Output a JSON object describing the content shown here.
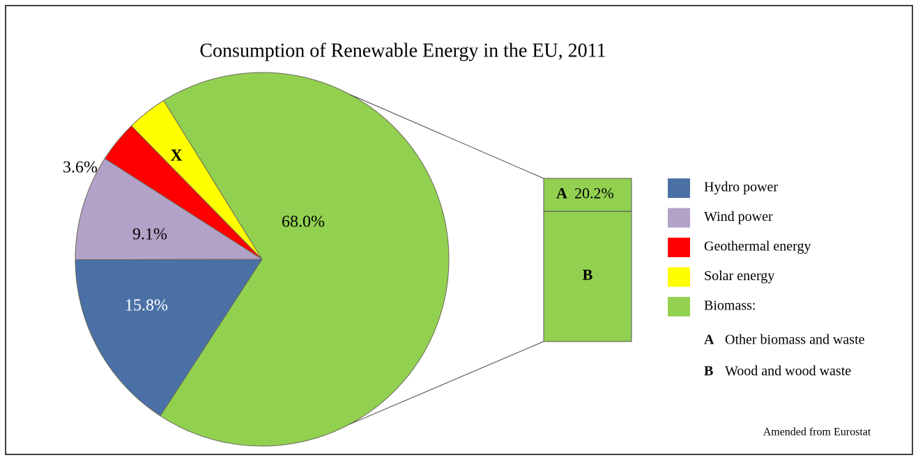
{
  "chart_data": {
    "type": "pie",
    "title": "Consumption of Renewable Energy in the EU, 2011",
    "categories": [
      "Hydro power",
      "Wind power",
      "Geothermal energy",
      "Solar energy",
      "Biomass:"
    ],
    "values": [
      15.8,
      9.1,
      3.6,
      3.5,
      68.0
    ],
    "value_labels": [
      "15.8%",
      "9.1%",
      "3.6%",
      "X",
      "68.0%"
    ],
    "colors": [
      "#4a70a6",
      "#b3a2c7",
      "#ff0000",
      "#ffff00",
      "#92d050"
    ],
    "legend": "right",
    "breakdown": {
      "keys": [
        "A",
        "B"
      ],
      "categories": [
        "Other biomass and waste",
        "Wood and wood waste"
      ],
      "values": [
        20.2,
        79.8
      ],
      "value_labels": [
        "20.2%",
        null
      ],
      "color": "#92d050"
    },
    "source": "Amended from Eurostat"
  }
}
